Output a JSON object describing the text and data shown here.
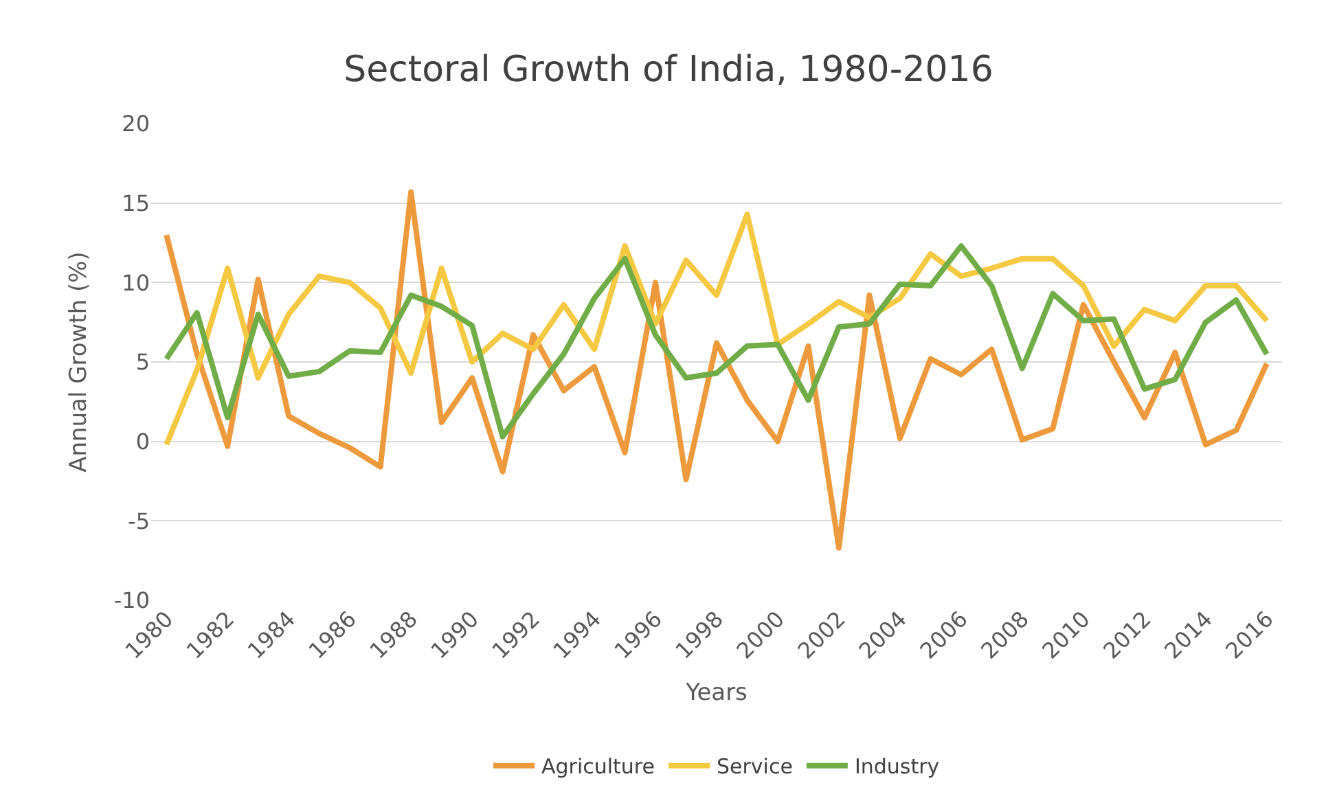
{
  "chart_data": {
    "type": "line",
    "title": "Sectoral Growth of India, 1980-2016",
    "xlabel": "Years",
    "ylabel": "Annual Growth (%)",
    "categories": [
      "1980",
      null,
      "1982",
      null,
      "1984",
      null,
      "1986",
      null,
      "1988",
      null,
      "1990",
      null,
      "1992",
      null,
      "1994",
      null,
      "1996",
      null,
      "1998",
      null,
      "2000",
      null,
      "2002",
      null,
      "2004",
      null,
      "2006",
      null,
      "2008",
      null,
      "2010",
      null,
      "2012",
      null,
      "2014",
      null,
      "2016"
    ],
    "series": [
      {
        "name": "Agriculture",
        "color": "#ed9a3c",
        "values": [
          13,
          5.5,
          -0.3,
          10.2,
          1.6,
          0.5,
          -0.4,
          -1.6,
          15.7,
          1.2,
          4.0,
          -1.9,
          6.7,
          3.2,
          4.7,
          -0.7,
          10.0,
          -2.4,
          6.2,
          2.6,
          0,
          6.0,
          -6.7,
          9.2,
          0.2,
          5.2,
          4.2,
          5.8,
          0.1,
          0.8,
          8.6,
          5.0,
          1.5,
          5.6,
          -0.2,
          0.7,
          4.9
        ]
      },
      {
        "name": "Service",
        "color": "#f5c842",
        "values": [
          -0.2,
          4.5,
          10.9,
          4.0,
          8.0,
          10.4,
          10.0,
          8.4,
          4.3,
          10.9,
          5.0,
          6.8,
          5.8,
          8.6,
          5.8,
          12.3,
          7.4,
          11.4,
          9.2,
          14.3,
          6.1,
          7.4,
          8.8,
          7.8,
          9.0,
          11.8,
          10.4,
          10.9,
          11.5,
          11.5,
          9.8,
          6.0,
          8.3,
          7.6,
          9.8,
          9.8,
          7.6
        ]
      },
      {
        "name": "Industry",
        "color": "#70ad47",
        "values": [
          5.2,
          8.1,
          1.5,
          8.0,
          4.1,
          4.4,
          5.7,
          5.6,
          9.2,
          8.5,
          7.3,
          0.3,
          3.0,
          5.5,
          9.0,
          11.5,
          6.7,
          4.0,
          4.3,
          6.0,
          6.1,
          2.6,
          7.2,
          7.4,
          9.9,
          9.8,
          12.3,
          9.8,
          4.6,
          9.3,
          7.6,
          7.7,
          3.3,
          3.9,
          7.5,
          8.9,
          5.5
        ]
      }
    ],
    "ylim": [
      -10,
      20
    ],
    "yticks": [
      -10,
      -5,
      0,
      5,
      10,
      15,
      20
    ],
    "grid": "y",
    "legend": "bottom",
    "marker": "none",
    "line_style": "solid"
  }
}
